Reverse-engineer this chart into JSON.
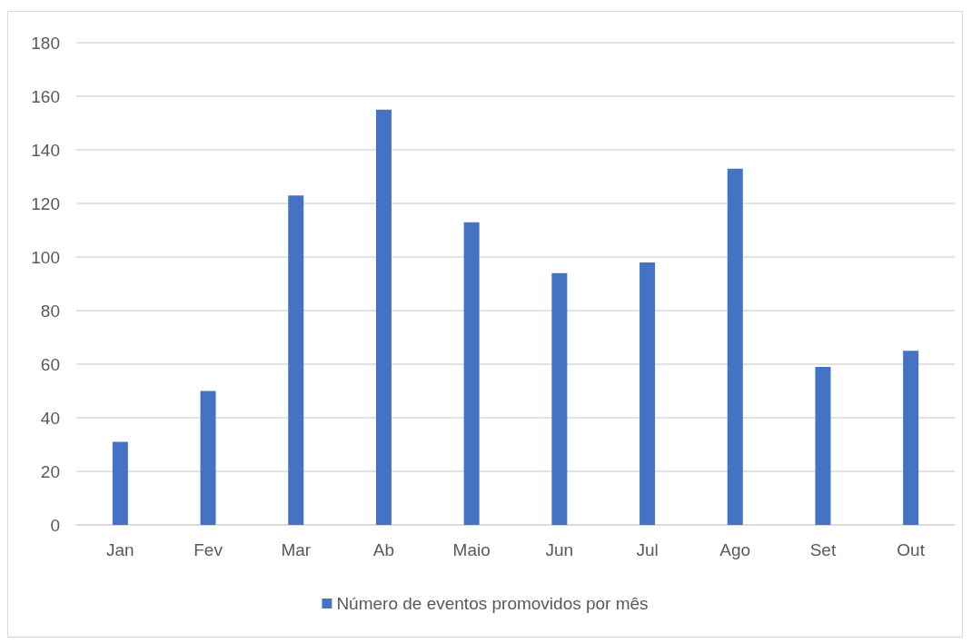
{
  "chart_data": {
    "type": "bar",
    "categories": [
      "Jan",
      "Fev",
      "Mar",
      "Ab",
      "Maio",
      "Jun",
      "Jul",
      "Ago",
      "Set",
      "Out"
    ],
    "series": [
      {
        "name": "Número de eventos promovidos por mês",
        "color": "#4472c4",
        "values": [
          31,
          50,
          123,
          155,
          113,
          94,
          98,
          133,
          59,
          65
        ]
      }
    ],
    "ylim": [
      0,
      180
    ],
    "yticks": [
      0,
      20,
      40,
      60,
      80,
      100,
      120,
      140,
      160,
      180
    ],
    "grid": "y",
    "legend": "bottom"
  }
}
